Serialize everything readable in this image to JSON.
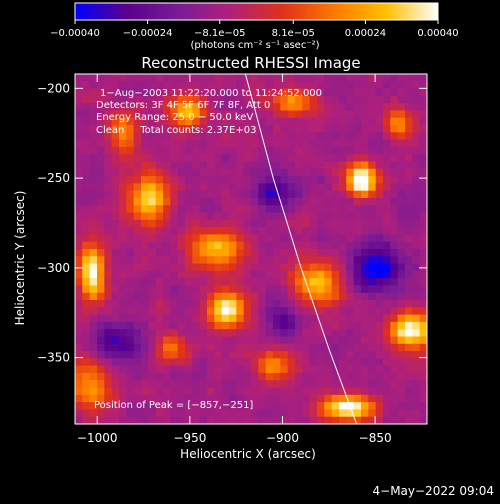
{
  "chart_data": {
    "type": "heatmap",
    "title": "Reconstructed RHESSI Image",
    "xlabel": "Heliocentric X (arcsec)",
    "ylabel": "Heliocentric Y (arcsec)",
    "xlim": [
      -1012,
      -822
    ],
    "ylim": [
      -387,
      -192
    ],
    "x_ticks": [
      {
        "value": -1000,
        "label": "−1000"
      },
      {
        "value": -950,
        "label": "−950"
      },
      {
        "value": -900,
        "label": "−900"
      },
      {
        "value": -850,
        "label": "−850"
      }
    ],
    "y_ticks": [
      {
        "value": -200,
        "label": "−200"
      },
      {
        "value": -250,
        "label": "−250"
      },
      {
        "value": -300,
        "label": "−300"
      },
      {
        "value": -350,
        "label": "−350"
      }
    ],
    "colorbar": {
      "min": -0.0004,
      "max": 0.0004,
      "colors": [
        "#0000ff",
        "#5a008c",
        "#7a1c96",
        "#b0207a",
        "#e0301a",
        "#ff7800",
        "#ffc000",
        "#ffffff"
      ],
      "ticks": [
        {
          "value": -0.0004,
          "label": "−0.00040"
        },
        {
          "value": -0.00024,
          "label": "−0.00024"
        },
        {
          "value": -8.1e-05,
          "label": "−8.1e−05"
        },
        {
          "value": 8.1e-05,
          "label": "8.1e−05"
        },
        {
          "value": 0.00024,
          "label": "0.00024"
        },
        {
          "value": 0.0004,
          "label": "0.00040"
        }
      ],
      "unit_label": "(photons cm⁻² s⁻¹ asec⁻²)"
    },
    "info_lines": [
      "1−Aug−2003 11:22:20.000 to 11:24:52.000",
      "Detectors: 3F 4F 5F 6F 7F 8F, Att 0",
      "Energy Range: 25.0 − 50.0 keV",
      "Clean     Total counts: 2.37E+03"
    ],
    "peak_label": "Position of Peak = [−857,−251]",
    "peak": [
      -857,
      -251
    ],
    "limb_curve": [
      [
        -920,
        -192
      ],
      [
        -905,
        -250
      ],
      [
        -890,
        -300
      ],
      [
        -875,
        -345
      ],
      [
        -860,
        -387
      ]
    ],
    "sources": [
      {
        "x": -857,
        "y": -251,
        "sx": 6,
        "sy": 6,
        "amp": 1.0
      },
      {
        "x": -1003,
        "y": -303,
        "sx": 5,
        "sy": 11,
        "amp": 0.85
      },
      {
        "x": -930,
        "y": -323,
        "sx": 7,
        "sy": 7,
        "amp": 0.9
      },
      {
        "x": -830,
        "y": -335,
        "sx": 8,
        "sy": 7,
        "amp": 0.85
      },
      {
        "x": -865,
        "y": -378,
        "sx": 10,
        "sy": 5,
        "amp": 0.9
      },
      {
        "x": -972,
        "y": -262,
        "sx": 8,
        "sy": 10,
        "amp": 0.7
      },
      {
        "x": -952,
        "y": -213,
        "sx": 7,
        "sy": 6,
        "amp": 0.65
      },
      {
        "x": -935,
        "y": -290,
        "sx": 10,
        "sy": 8,
        "amp": 0.65
      },
      {
        "x": -895,
        "y": -208,
        "sx": 8,
        "sy": 5,
        "amp": 0.55
      },
      {
        "x": -880,
        "y": -308,
        "sx": 10,
        "sy": 9,
        "amp": 0.6
      },
      {
        "x": -1003,
        "y": -365,
        "sx": 8,
        "sy": 10,
        "amp": 0.55
      },
      {
        "x": -905,
        "y": -355,
        "sx": 7,
        "sy": 7,
        "amp": 0.5
      },
      {
        "x": -985,
        "y": -225,
        "sx": 6,
        "sy": 8,
        "amp": 0.5
      },
      {
        "x": -960,
        "y": -345,
        "sx": 6,
        "sy": 6,
        "amp": 0.45
      },
      {
        "x": -838,
        "y": -220,
        "sx": 6,
        "sy": 6,
        "amp": 0.45
      }
    ],
    "negative_regions": [
      {
        "x": -850,
        "y": -300,
        "sx": 10,
        "sy": 9,
        "amp": 0.6
      },
      {
        "x": -990,
        "y": -342,
        "sx": 9,
        "sy": 8,
        "amp": 0.45
      },
      {
        "x": -905,
        "y": -258,
        "sx": 8,
        "sy": 7,
        "amp": 0.4
      },
      {
        "x": -900,
        "y": -330,
        "sx": 7,
        "sy": 6,
        "amp": 0.35
      }
    ]
  },
  "footer": {
    "timestamp": "4−May−2022 09:04"
  }
}
